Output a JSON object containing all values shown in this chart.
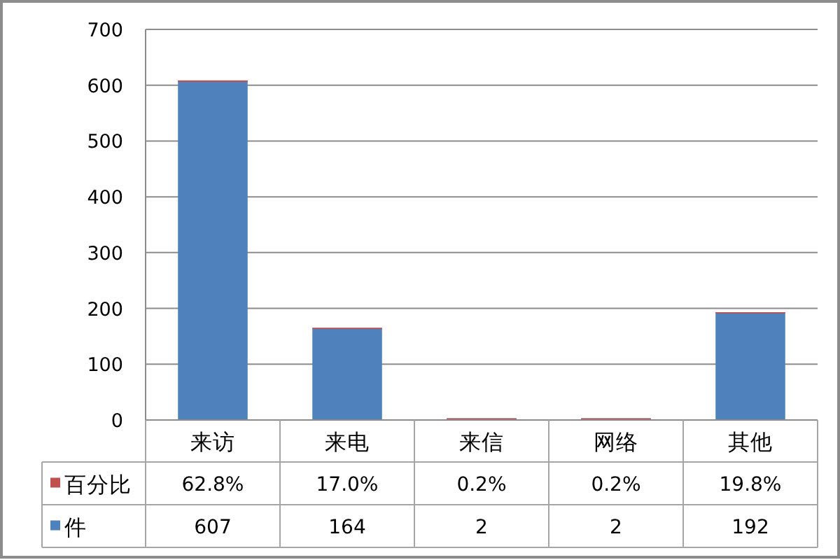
{
  "chart_data": {
    "type": "bar",
    "stacked": true,
    "categories": [
      "来访",
      "来电",
      "来信",
      "网络",
      "其他"
    ],
    "series": [
      {
        "name": "件",
        "color": "#4f81bd",
        "values": [
          607,
          164,
          2,
          2,
          192
        ],
        "value_labels": [
          "607",
          "164",
          "2",
          "2",
          "192"
        ]
      },
      {
        "name": "百分比",
        "color": "#c0504d",
        "values": [
          0.628,
          0.17,
          0.002,
          0.002,
          0.198
        ],
        "value_labels": [
          "62.8%",
          "17.0%",
          "0.2%",
          "0.2%",
          "19.8%"
        ]
      }
    ],
    "ylim": [
      0,
      700
    ],
    "yticks": [
      0,
      100,
      200,
      300,
      400,
      500,
      600,
      700
    ],
    "grid": "y",
    "legend": "bottom"
  }
}
